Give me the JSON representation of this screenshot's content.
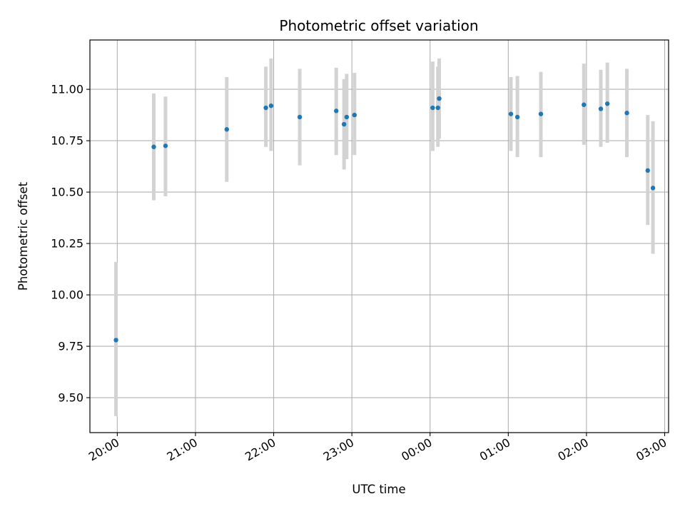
{
  "chart_data": {
    "type": "scatter",
    "title": "Photometric offset variation",
    "xlabel": "UTC time",
    "ylabel": "Photometric offset",
    "x_tick_labels": [
      "20:00",
      "21:00",
      "22:00",
      "23:00",
      "00:00",
      "01:00",
      "02:00",
      "03:00"
    ],
    "y_tick_labels": [
      "9.50",
      "9.75",
      "10.00",
      "10.25",
      "10.50",
      "10.75",
      "11.00"
    ],
    "y_ticks": [
      9.5,
      9.75,
      10.0,
      10.25,
      10.5,
      10.75,
      11.0
    ],
    "xlim": [
      "19:39",
      "03:03"
    ],
    "ylim": [
      9.33,
      11.24
    ],
    "grid": true,
    "errorbar_color": "#d3d3d3",
    "point_color": "#1f77b4",
    "series": [
      {
        "x": [
          "19:59",
          "20:28",
          "20:37",
          "21:24",
          "21:54",
          "21:58",
          "22:20",
          "22:48",
          "22:54",
          "22:56",
          "23:02",
          "00:02",
          "00:06",
          "00:07",
          "01:02",
          "01:07",
          "01:25",
          "01:58",
          "02:11",
          "02:16",
          "02:31",
          "02:47",
          "02:51"
        ],
        "y": [
          9.78,
          10.72,
          10.725,
          10.805,
          10.91,
          10.92,
          10.865,
          10.895,
          10.83,
          10.865,
          10.875,
          10.91,
          10.91,
          10.955,
          10.88,
          10.865,
          10.88,
          10.925,
          10.905,
          10.93,
          10.885,
          10.605,
          10.52
        ],
        "yerr_low": [
          9.41,
          10.46,
          10.48,
          10.55,
          10.72,
          10.7,
          10.63,
          10.68,
          10.61,
          10.66,
          10.68,
          10.7,
          10.72,
          10.76,
          10.7,
          10.67,
          10.67,
          10.73,
          10.72,
          10.74,
          10.67,
          10.34,
          10.2
        ],
        "yerr_high": [
          10.16,
          10.98,
          10.965,
          11.06,
          11.11,
          11.15,
          11.1,
          11.105,
          11.05,
          11.075,
          11.08,
          11.135,
          11.11,
          11.15,
          11.06,
          11.065,
          11.085,
          11.125,
          11.095,
          11.13,
          11.1,
          10.875,
          10.845
        ]
      }
    ]
  }
}
